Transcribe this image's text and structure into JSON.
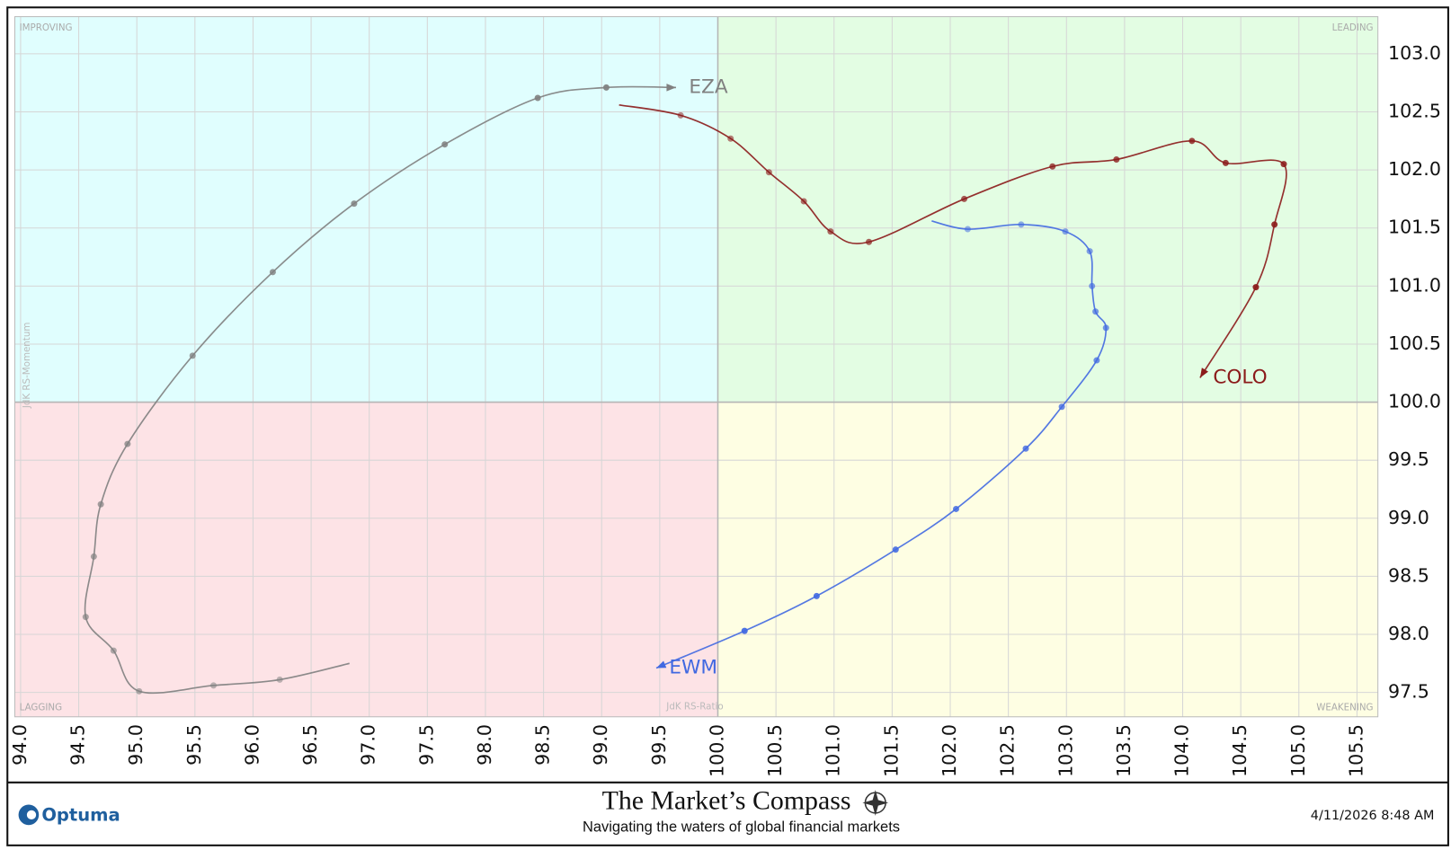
{
  "chart_data": {
    "type": "line",
    "x_label": "JdK RS-Ratio",
    "y_label": "JdK RS-Momentum",
    "quadrant_labels": {
      "top_left": "IMPROVING",
      "top_right": "LEADING",
      "bottom_left": "LAGGING",
      "bottom_right": "WEAKENING"
    },
    "quadrant_colors": {
      "top_left": "#e0fefe",
      "top_right": "#e3fde3",
      "bottom_left": "#fde3e6",
      "bottom_right": "#fefee3"
    },
    "center": [
      100,
      100
    ],
    "xlim": [
      93.95,
      105.68
    ],
    "ylim": [
      97.29,
      103.32
    ],
    "grid": true,
    "xticks": [
      {
        "value": 94,
        "label": "94.0"
      },
      94.5,
      {
        "value": 95,
        "label": "95.0"
      },
      95.5,
      {
        "value": 96,
        "label": "96.0"
      },
      96.5,
      {
        "value": 97,
        "label": "97.0"
      },
      97.5,
      {
        "value": 98,
        "label": "98.0"
      },
      98.5,
      {
        "value": 99,
        "label": "99.0"
      },
      99.5,
      {
        "value": 100,
        "label": "100.0"
      },
      100.5,
      {
        "value": 101,
        "label": "101.0"
      },
      101.5,
      {
        "value": 102,
        "label": "102.0"
      },
      102.5,
      {
        "value": 103,
        "label": "103.0"
      },
      103.5,
      {
        "value": 104,
        "label": "104.0"
      },
      104.5,
      {
        "value": 105,
        "label": "105.0"
      },
      105.5
    ],
    "yticks": [
      97.5,
      {
        "value": 98,
        "label": "98.0"
      },
      98.5,
      {
        "value": 99,
        "label": "99.0"
      },
      99.5,
      {
        "value": 100,
        "label": "100.0"
      },
      100.5,
      {
        "value": 101,
        "label": "101.0"
      },
      101.5,
      {
        "value": 102,
        "label": "102.0"
      },
      102.5,
      {
        "value": 103,
        "label": "103.0"
      }
    ],
    "series": [
      {
        "name": "EZA",
        "color": "#808080",
        "x": [
          96.83,
          96.23,
          95.66,
          95.02,
          94.8,
          94.56,
          94.63,
          94.69,
          94.92,
          95.48,
          96.17,
          96.87,
          97.65,
          98.45,
          99.04,
          99.64
        ],
        "values": [
          97.75,
          97.61,
          97.56,
          97.51,
          97.86,
          98.15,
          98.67,
          99.12,
          99.64,
          100.4,
          101.12,
          101.71,
          102.22,
          102.62,
          102.71,
          102.71
        ]
      },
      {
        "name": "COLO",
        "color": "#8b1a1a",
        "x": [
          99.15,
          99.68,
          100.11,
          100.44,
          100.74,
          100.97,
          101.3,
          102.12,
          102.88,
          103.43,
          104.08,
          104.37,
          104.87,
          104.79,
          104.63,
          104.15
        ],
        "values": [
          102.56,
          102.47,
          102.27,
          101.98,
          101.73,
          101.47,
          101.38,
          101.75,
          102.03,
          102.09,
          102.25,
          102.06,
          102.05,
          101.53,
          100.99,
          100.21
        ]
      },
      {
        "name": "EWM",
        "color": "#4169e1",
        "x": [
          101.84,
          102.15,
          102.61,
          102.99,
          103.2,
          103.22,
          103.25,
          103.34,
          103.26,
          102.96,
          102.65,
          102.05,
          101.53,
          100.85,
          100.23,
          99.47
        ],
        "values": [
          101.56,
          101.49,
          101.53,
          101.47,
          101.3,
          101.0,
          100.78,
          100.64,
          100.36,
          99.96,
          99.6,
          99.08,
          98.73,
          98.33,
          98.03,
          97.71
        ]
      }
    ]
  },
  "footer": {
    "brand": "Optuma",
    "title": "The Market’s Compass",
    "subtitle": "Navigating the waters of global financial markets",
    "timestamp": "4/11/2026 8:48 AM"
  }
}
